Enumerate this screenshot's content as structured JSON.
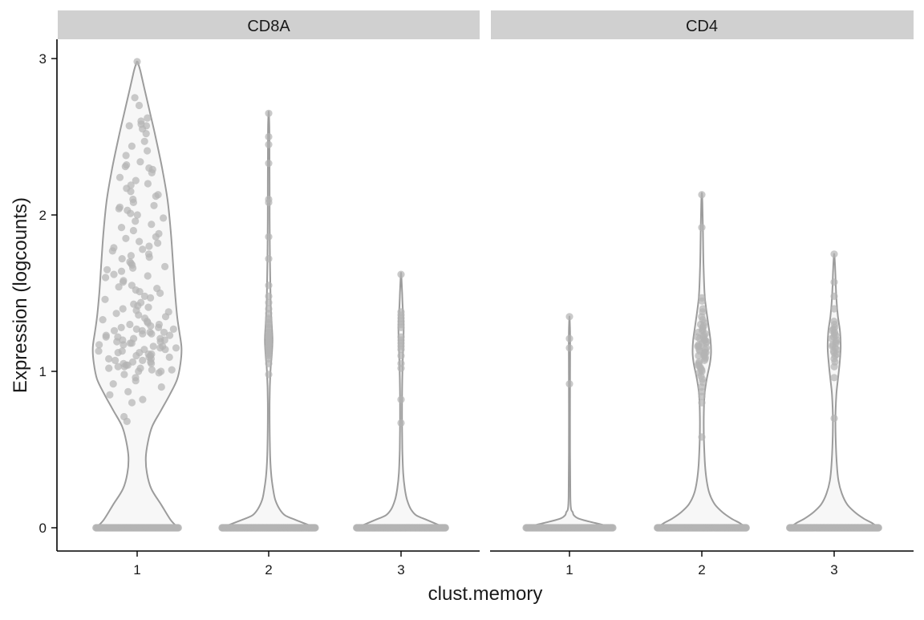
{
  "chart_data": {
    "type": "violin",
    "title": "",
    "xlabel": "clust.memory",
    "ylabel": "Expression (logcounts)",
    "ylim": [
      -0.15,
      3.08
    ],
    "y_ticks": [
      0,
      1,
      2,
      3
    ],
    "y_tick_labels": [
      "0",
      "1",
      "2",
      "3"
    ],
    "categories": [
      "1",
      "2",
      "3"
    ],
    "colors": {
      "violin_fill": "#f7f7f7",
      "violin_stroke": "#9c9c9c",
      "point": "#b4b4b4",
      "strip_bg": "#d0d0d0",
      "axis": "#000000"
    },
    "facets": [
      {
        "label": "CD8A",
        "groups": [
          {
            "category": "1",
            "zero_count": 90,
            "violin_profile": [
              [
                0,
                0.38
              ],
              [
                0.05,
                0.31
              ],
              [
                0.15,
                0.22
              ],
              [
                0.25,
                0.13
              ],
              [
                0.35,
                0.09
              ],
              [
                0.45,
                0.08
              ],
              [
                0.55,
                0.1
              ],
              [
                0.65,
                0.14
              ],
              [
                0.75,
                0.22
              ],
              [
                0.85,
                0.3
              ],
              [
                0.95,
                0.37
              ],
              [
                1.05,
                0.4
              ],
              [
                1.15,
                0.41
              ],
              [
                1.25,
                0.39
              ],
              [
                1.35,
                0.37
              ],
              [
                1.5,
                0.35
              ],
              [
                1.7,
                0.33
              ],
              [
                1.9,
                0.31
              ],
              [
                2.1,
                0.28
              ],
              [
                2.3,
                0.23
              ],
              [
                2.5,
                0.17
              ],
              [
                2.65,
                0.12
              ],
              [
                2.8,
                0.07
              ],
              [
                2.92,
                0.03
              ],
              [
                2.98,
                0.004
              ]
            ],
            "points": [
              2.98,
              2.75,
              2.7,
              2.62,
              2.6,
              2.58,
              2.57,
              2.57,
              2.55,
              2.52,
              2.47,
              2.44,
              2.41,
              2.38,
              2.34,
              2.32,
              2.31,
              2.3,
              2.29,
              2.27,
              2.24,
              2.22,
              2.2,
              2.19,
              2.17,
              2.15,
              2.13,
              2.12,
              2.1,
              2.08,
              2.06,
              2.05,
              2.04,
              2.03,
              2.01,
              2.0,
              1.98,
              1.96,
              1.94,
              1.92,
              1.9,
              1.88,
              1.86,
              1.85,
              1.83,
              1.82,
              1.8,
              1.79,
              1.78,
              1.77,
              1.75,
              1.74,
              1.73,
              1.72,
              1.7,
              1.69,
              1.68,
              1.67,
              1.66,
              1.65,
              1.64,
              1.62,
              1.61,
              1.6,
              1.58,
              1.57,
              1.55,
              1.54,
              1.53,
              1.52,
              1.51,
              1.5,
              1.48,
              1.47,
              1.46,
              1.44,
              1.43,
              1.42,
              1.41,
              1.4,
              1.39,
              1.38,
              1.37,
              1.36,
              1.35,
              1.34,
              1.33,
              1.32,
              1.31,
              1.3,
              1.3,
              1.29,
              1.28,
              1.28,
              1.27,
              1.27,
              1.26,
              1.26,
              1.25,
              1.25,
              1.24,
              1.24,
              1.23,
              1.23,
              1.22,
              1.22,
              1.21,
              1.21,
              1.2,
              1.2,
              1.19,
              1.19,
              1.18,
              1.18,
              1.17,
              1.17,
              1.16,
              1.16,
              1.15,
              1.15,
              1.14,
              1.14,
              1.13,
              1.13,
              1.12,
              1.12,
              1.11,
              1.11,
              1.1,
              1.1,
              1.09,
              1.09,
              1.08,
              1.08,
              1.07,
              1.07,
              1.06,
              1.06,
              1.05,
              1.05,
              1.04,
              1.04,
              1.03,
              1.03,
              1.02,
              1.02,
              1.01,
              1.01,
              1.0,
              1.0,
              0.99,
              0.98,
              0.96,
              0.94,
              0.92,
              0.9,
              0.87,
              0.85,
              0.82,
              0.8,
              0.71,
              0.68
            ]
          },
          {
            "category": "2",
            "zero_count": 140,
            "violin_profile": [
              [
                0,
                0.43
              ],
              [
                0.02,
                0.36
              ],
              [
                0.05,
                0.25
              ],
              [
                0.08,
                0.15
              ],
              [
                0.12,
                0.1
              ],
              [
                0.18,
                0.06
              ],
              [
                0.25,
                0.04
              ],
              [
                0.35,
                0.022
              ],
              [
                0.5,
                0.012
              ],
              [
                0.8,
                0.008
              ],
              [
                1.0,
                0.016
              ],
              [
                1.1,
                0.028
              ],
              [
                1.2,
                0.035
              ],
              [
                1.3,
                0.028
              ],
              [
                1.45,
                0.018
              ],
              [
                1.8,
                0.01
              ],
              [
                2.2,
                0.008
              ],
              [
                2.5,
                0.007
              ],
              [
                2.62,
                0.004
              ],
              [
                2.66,
                0.001
              ]
            ],
            "points": [
              2.65,
              2.5,
              2.45,
              2.33,
              2.1,
              2.08,
              1.86,
              1.72,
              1.55,
              1.48,
              1.44,
              1.4,
              1.37,
              1.34,
              1.33,
              1.31,
              1.3,
              1.28,
              1.27,
              1.25,
              1.24,
              1.23,
              1.22,
              1.21,
              1.2,
              1.19,
              1.18,
              1.17,
              1.16,
              1.15,
              1.14,
              1.13,
              1.12,
              1.11,
              1.1,
              1.08,
              1.05,
              0.98
            ]
          },
          {
            "category": "3",
            "zero_count": 130,
            "violin_profile": [
              [
                0,
                0.41
              ],
              [
                0.02,
                0.34
              ],
              [
                0.05,
                0.24
              ],
              [
                0.08,
                0.14
              ],
              [
                0.12,
                0.09
              ],
              [
                0.18,
                0.055
              ],
              [
                0.25,
                0.035
              ],
              [
                0.35,
                0.02
              ],
              [
                0.5,
                0.012
              ],
              [
                0.7,
                0.009
              ],
              [
                0.9,
                0.01
              ],
              [
                1.05,
                0.015
              ],
              [
                1.2,
                0.022
              ],
              [
                1.3,
                0.024
              ],
              [
                1.4,
                0.016
              ],
              [
                1.5,
                0.01
              ],
              [
                1.6,
                0.004
              ],
              [
                1.63,
                0.001
              ]
            ],
            "points": [
              1.62,
              1.38,
              1.36,
              1.34,
              1.32,
              1.3,
              1.28,
              1.22,
              1.2,
              1.18,
              1.16,
              1.14,
              1.1,
              1.05,
              1.02,
              0.82,
              0.67
            ]
          }
        ]
      },
      {
        "label": "CD4",
        "groups": [
          {
            "category": "1",
            "zero_count": 100,
            "violin_profile": [
              [
                0,
                0.4
              ],
              [
                0.02,
                0.3
              ],
              [
                0.04,
                0.18
              ],
              [
                0.06,
                0.08
              ],
              [
                0.08,
                0.04
              ],
              [
                0.1,
                0.03
              ],
              [
                0.12,
                0.015
              ],
              [
                0.2,
                0.008
              ],
              [
                0.5,
                0.005
              ],
              [
                0.9,
                0.005
              ],
              [
                1.1,
                0.006
              ],
              [
                1.2,
                0.006
              ],
              [
                1.3,
                0.004
              ],
              [
                1.35,
                0.001
              ]
            ],
            "points": [
              1.35,
              1.21,
              1.15,
              0.92
            ]
          },
          {
            "category": "2",
            "zero_count": 150,
            "violin_profile": [
              [
                0,
                0.41
              ],
              [
                0.03,
                0.35
              ],
              [
                0.06,
                0.27
              ],
              [
                0.1,
                0.19
              ],
              [
                0.15,
                0.12
              ],
              [
                0.22,
                0.07
              ],
              [
                0.3,
                0.045
              ],
              [
                0.4,
                0.03
              ],
              [
                0.55,
                0.02
              ],
              [
                0.7,
                0.018
              ],
              [
                0.85,
                0.025
              ],
              [
                0.95,
                0.045
              ],
              [
                1.05,
                0.075
              ],
              [
                1.12,
                0.085
              ],
              [
                1.2,
                0.08
              ],
              [
                1.3,
                0.06
              ],
              [
                1.4,
                0.04
              ],
              [
                1.5,
                0.025
              ],
              [
                1.7,
                0.015
              ],
              [
                1.9,
                0.01
              ],
              [
                2.05,
                0.006
              ],
              [
                2.12,
                0.003
              ],
              [
                2.14,
                0.001
              ]
            ],
            "points": [
              2.13,
              1.92,
              1.47,
              1.45,
              1.4,
              1.38,
              1.35,
              1.33,
              1.31,
              1.3,
              1.29,
              1.28,
              1.27,
              1.26,
              1.25,
              1.24,
              1.23,
              1.22,
              1.22,
              1.21,
              1.2,
              1.2,
              1.19,
              1.18,
              1.18,
              1.17,
              1.16,
              1.16,
              1.15,
              1.14,
              1.14,
              1.13,
              1.12,
              1.12,
              1.11,
              1.1,
              1.1,
              1.09,
              1.08,
              1.07,
              1.06,
              1.05,
              1.04,
              1.03,
              1.02,
              1.01,
              1.0,
              0.99,
              0.97,
              0.95,
              0.93,
              0.9,
              0.87,
              0.84,
              0.8,
              0.58
            ]
          },
          {
            "category": "3",
            "zero_count": 140,
            "violin_profile": [
              [
                0,
                0.41
              ],
              [
                0.03,
                0.35
              ],
              [
                0.06,
                0.27
              ],
              [
                0.1,
                0.19
              ],
              [
                0.15,
                0.12
              ],
              [
                0.22,
                0.07
              ],
              [
                0.3,
                0.04
              ],
              [
                0.4,
                0.025
              ],
              [
                0.55,
                0.015
              ],
              [
                0.7,
                0.012
              ],
              [
                0.85,
                0.02
              ],
              [
                0.95,
                0.035
              ],
              [
                1.05,
                0.05
              ],
              [
                1.15,
                0.06
              ],
              [
                1.25,
                0.055
              ],
              [
                1.35,
                0.035
              ],
              [
                1.45,
                0.022
              ],
              [
                1.55,
                0.015
              ],
              [
                1.65,
                0.01
              ],
              [
                1.73,
                0.004
              ],
              [
                1.75,
                0.001
              ]
            ],
            "points": [
              1.75,
              1.57,
              1.48,
              1.4,
              1.32,
              1.3,
              1.28,
              1.27,
              1.26,
              1.25,
              1.24,
              1.23,
              1.22,
              1.21,
              1.2,
              1.19,
              1.18,
              1.17,
              1.16,
              1.15,
              1.14,
              1.13,
              1.12,
              1.11,
              1.1,
              1.08,
              1.06,
              1.03,
              0.96,
              0.7
            ]
          }
        ]
      }
    ]
  }
}
